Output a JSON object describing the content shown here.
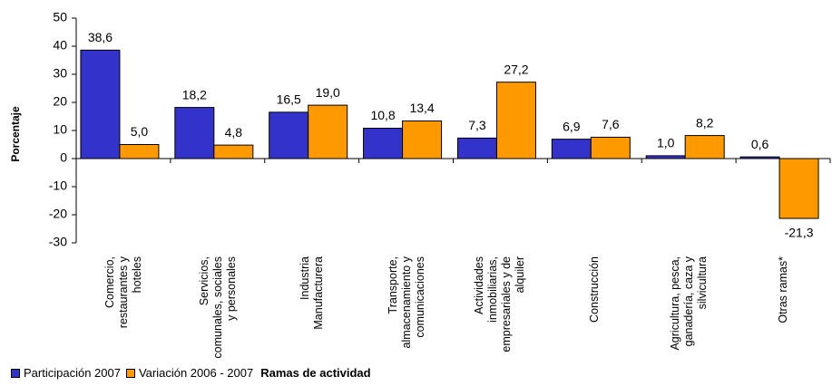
{
  "chart_data": {
    "type": "bar",
    "categories": [
      "Comercio, restaurantes y hoteles",
      "Servicios, comunales, sociales y personales",
      "Industria Manufacturera",
      "Transporte, almacenamiento y comunicaciones",
      "Actividades inmobiliarias, empresariales y de alquiler",
      "Construcción",
      "Agricultura, pesca, ganadería, caza y silvicultura",
      "Otras ramas*"
    ],
    "series": [
      {
        "name": "Participación 2007",
        "color": "#3333cc",
        "values": [
          38.6,
          18.2,
          16.5,
          10.8,
          7.3,
          6.9,
          1.0,
          0.6
        ],
        "value_labels": [
          "38,6",
          "18,2",
          "16,5",
          "10,8",
          "7,3",
          "6,9",
          "1,0",
          "0,6"
        ]
      },
      {
        "name": "Variación 2006 - 2007",
        "color": "#ff9900",
        "values": [
          5.0,
          4.8,
          19.0,
          13.4,
          27.2,
          7.6,
          8.2,
          -21.3
        ],
        "value_labels": [
          "5,0",
          "4,8",
          "19,0",
          "13,4",
          "27,2",
          "7,6",
          "8,2",
          "-21,3"
        ]
      }
    ],
    "y_label": "Porcentaje",
    "x_label": "Ramas de actividad",
    "ylim": [
      -30,
      50
    ],
    "yticks": [
      -30,
      -20,
      -10,
      0,
      10,
      20,
      30,
      40,
      50
    ]
  }
}
